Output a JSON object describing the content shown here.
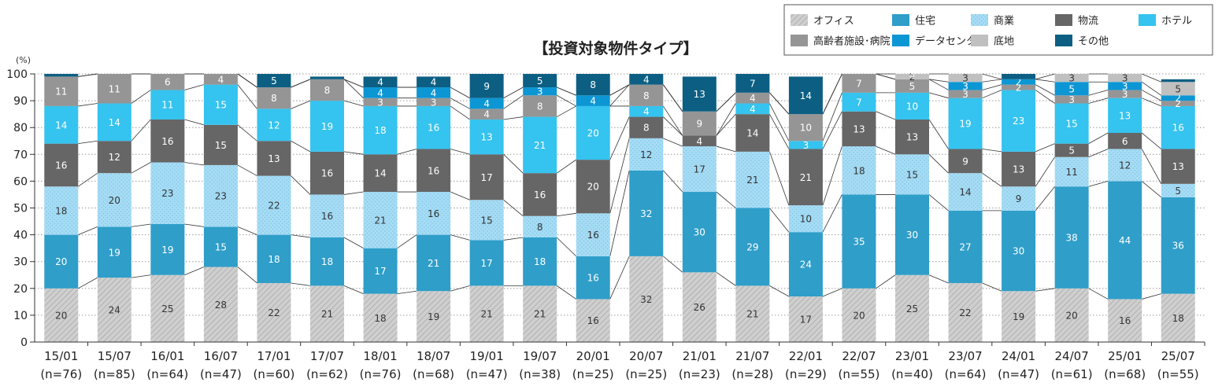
{
  "chart_data": {
    "type": "bar",
    "stacked": true,
    "title": "【投資対象物件タイプ】",
    "y_unit": "(%)",
    "ylim": [
      0,
      100
    ],
    "yticks": [
      0,
      10,
      20,
      30,
      40,
      50,
      60,
      70,
      80,
      90,
      100
    ],
    "grid": true,
    "legend_position": "top-right",
    "categories": [
      "15/01",
      "15/07",
      "16/01",
      "16/07",
      "17/01",
      "17/07",
      "18/01",
      "18/07",
      "19/01",
      "19/07",
      "20/01",
      "20/07",
      "21/01",
      "21/07",
      "22/01",
      "22/07",
      "23/01",
      "23/07",
      "24/01",
      "24/07",
      "25/01",
      "25/07"
    ],
    "sample_sizes": [
      "(n=76)",
      "(n=85)",
      "(n=64)",
      "(n=47)",
      "(n=60)",
      "(n=62)",
      "(n=76)",
      "(n=68)",
      "(n=47)",
      "(n=38)",
      "(n=25)",
      "(n=25)",
      "(n=23)",
      "(n=28)",
      "(n=29)",
      "(n=55)",
      "(n=40)",
      "(n=64)",
      "(n=47)",
      "(n=61)",
      "(n=68)",
      "(n=55)"
    ],
    "series": [
      {
        "name": "オフィス",
        "color": "#c8c8c8",
        "pattern": "hatch",
        "values": [
          20,
          24,
          25,
          28,
          22,
          21,
          18,
          19,
          21,
          21,
          16,
          32,
          26,
          21,
          17,
          20,
          25,
          22,
          19,
          20,
          16,
          18
        ]
      },
      {
        "name": "住宅",
        "color": "#2f9ec9",
        "values": [
          20,
          19,
          19,
          15,
          18,
          18,
          17,
          21,
          17,
          18,
          16,
          32,
          30,
          29,
          24,
          35,
          30,
          27,
          30,
          38,
          44,
          36
        ]
      },
      {
        "name": "商業",
        "color": "#a4dcf5",
        "pattern": "dots",
        "values": [
          18,
          20,
          23,
          23,
          22,
          16,
          21,
          16,
          15,
          8,
          16,
          12,
          17,
          21,
          10,
          18,
          15,
          14,
          9,
          11,
          12,
          5
        ]
      },
      {
        "name": "物流",
        "color": "#666666",
        "values": [
          16,
          12,
          16,
          15,
          13,
          16,
          14,
          16,
          17,
          16,
          20,
          8,
          4,
          14,
          21,
          13,
          13,
          9,
          13,
          5,
          6,
          13
        ]
      },
      {
        "name": "ホテル",
        "color": "#35c3ef",
        "values": [
          14,
          14,
          11,
          15,
          12,
          19,
          18,
          16,
          13,
          21,
          20,
          4,
          0,
          4,
          3,
          7,
          10,
          19,
          23,
          15,
          13,
          16
        ]
      },
      {
        "name": "高齢者施設･病院",
        "color": "#959595",
        "values": [
          11,
          11,
          6,
          4,
          8,
          8,
          3,
          3,
          4,
          8,
          0,
          8,
          9,
          4,
          10,
          7,
          5,
          3,
          2,
          3,
          3,
          2
        ]
      },
      {
        "name": "データセンター",
        "color": "#0c96d4",
        "values": [
          0,
          0,
          0,
          0,
          0,
          0,
          4,
          4,
          4,
          3,
          4,
          0,
          0,
          0,
          0,
          0,
          0,
          3,
          2,
          5,
          3,
          2
        ]
      },
      {
        "name": "底地",
        "color": "#c0c0c0",
        "values": [
          0,
          0,
          0,
          0,
          0,
          0,
          0,
          0,
          0,
          0,
          0,
          0,
          0,
          0,
          0,
          0,
          2,
          3,
          0,
          3,
          3,
          5
        ]
      },
      {
        "name": "その他",
        "color": "#0c5f83",
        "values": [
          1,
          1,
          0,
          0,
          5,
          1,
          4,
          4,
          9,
          5,
          8,
          4,
          13,
          7,
          14,
          0,
          3,
          2,
          2,
          0,
          2,
          1
        ]
      }
    ],
    "hidden_labels": {
      "0": [
        0
      ],
      "1": [
        0
      ],
      "2": [
        0
      ],
      "3": [
        0
      ],
      "4": [
        0
      ],
      "5": [
        0
      ],
      "6": [
        0
      ],
      "7": [
        0
      ],
      "8": [
        0
      ],
      "9": [
        0
      ],
      "10": [
        0
      ],
      "11": [
        0
      ],
      "12": [
        0
      ],
      "13": [
        0
      ],
      "14": [
        0
      ],
      "15": [
        0
      ],
      "16": [
        0
      ],
      "17": [
        0
      ],
      "18": [
        0
      ],
      "19": [
        0
      ],
      "20": [
        0
      ],
      "21": [
        0
      ]
    }
  }
}
